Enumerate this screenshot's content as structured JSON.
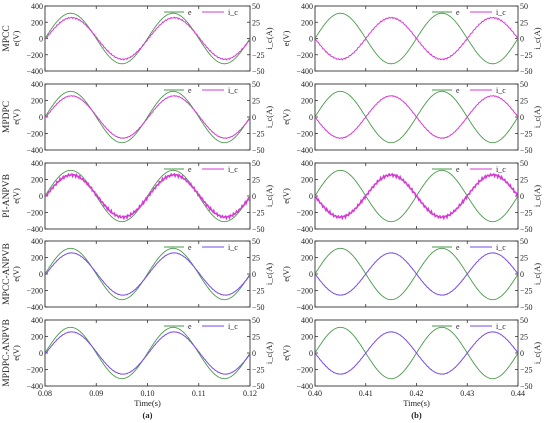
{
  "chart_data": {
    "type": "line",
    "columns": [
      {
        "id": "a",
        "label": "(a)",
        "xlabel": "Time(s)",
        "xlim": [
          0.08,
          0.12
        ],
        "xticks": [
          "0.08",
          "0.09",
          "0.10",
          "0.11",
          "0.12"
        ]
      },
      {
        "id": "b",
        "label": "(b)",
        "xlabel": "Time(s)",
        "xlim": [
          0.4,
          0.44
        ],
        "xticks": [
          "0.40",
          "0.41",
          "0.42",
          "0.43",
          "0.44"
        ]
      }
    ],
    "rows": [
      {
        "id": "mpcc",
        "label": "MPCC",
        "ylabel_left": "e(V)",
        "ylabel_right": "i_c(A)",
        "current_color": "#d63bd6",
        "ripple": 0.035
      },
      {
        "id": "mpdpc",
        "label": "MPDPC",
        "ylabel_left": "e(V)",
        "ylabel_right": "i_c(A)",
        "current_color": "#d63bd6",
        "ripple": 0.02
      },
      {
        "id": "pi-anpvb",
        "label": "PI-ANPVB",
        "ylabel_left": "e(V)",
        "ylabel_right": "i_c(A)",
        "current_color": "#d63bd6",
        "ripple": 0.07
      },
      {
        "id": "mpcc-anpvb",
        "label": "MPCC-ANPVB",
        "ylabel_left": "e(V)",
        "ylabel_right": "i_c(A)",
        "current_color": "#7a4ae8",
        "ripple": 0.012
      },
      {
        "id": "mpdpc-anpvb",
        "label": "MPDPC-ANPVB",
        "ylabel_left": "e(V)",
        "ylabel_right": "i_c(A)",
        "current_color": "#7a4ae8",
        "ripple": 0.012
      }
    ],
    "y_left": {
      "ylim": [
        -400,
        400
      ],
      "ticks": [
        "400",
        "200",
        "0",
        "−200",
        "−400"
      ]
    },
    "y_right": {
      "ylim": [
        -50,
        50
      ],
      "ticks": [
        "50",
        "25",
        "0",
        "−25",
        "−50"
      ]
    },
    "series": [
      {
        "name": "e",
        "legend": "e",
        "color": "#4a9a4a",
        "axis": "left",
        "amplitude": 311,
        "frequency_hz": 50,
        "phase": "sine",
        "unit": "V"
      },
      {
        "name": "i_c",
        "legend": "i_c",
        "axis": "right",
        "amplitude": 32,
        "frequency_hz": 50,
        "unit": "A",
        "phase_column_a": "in phase with e",
        "phase_column_b": "opposite phase to e"
      }
    ],
    "legend_position": "top-right"
  }
}
